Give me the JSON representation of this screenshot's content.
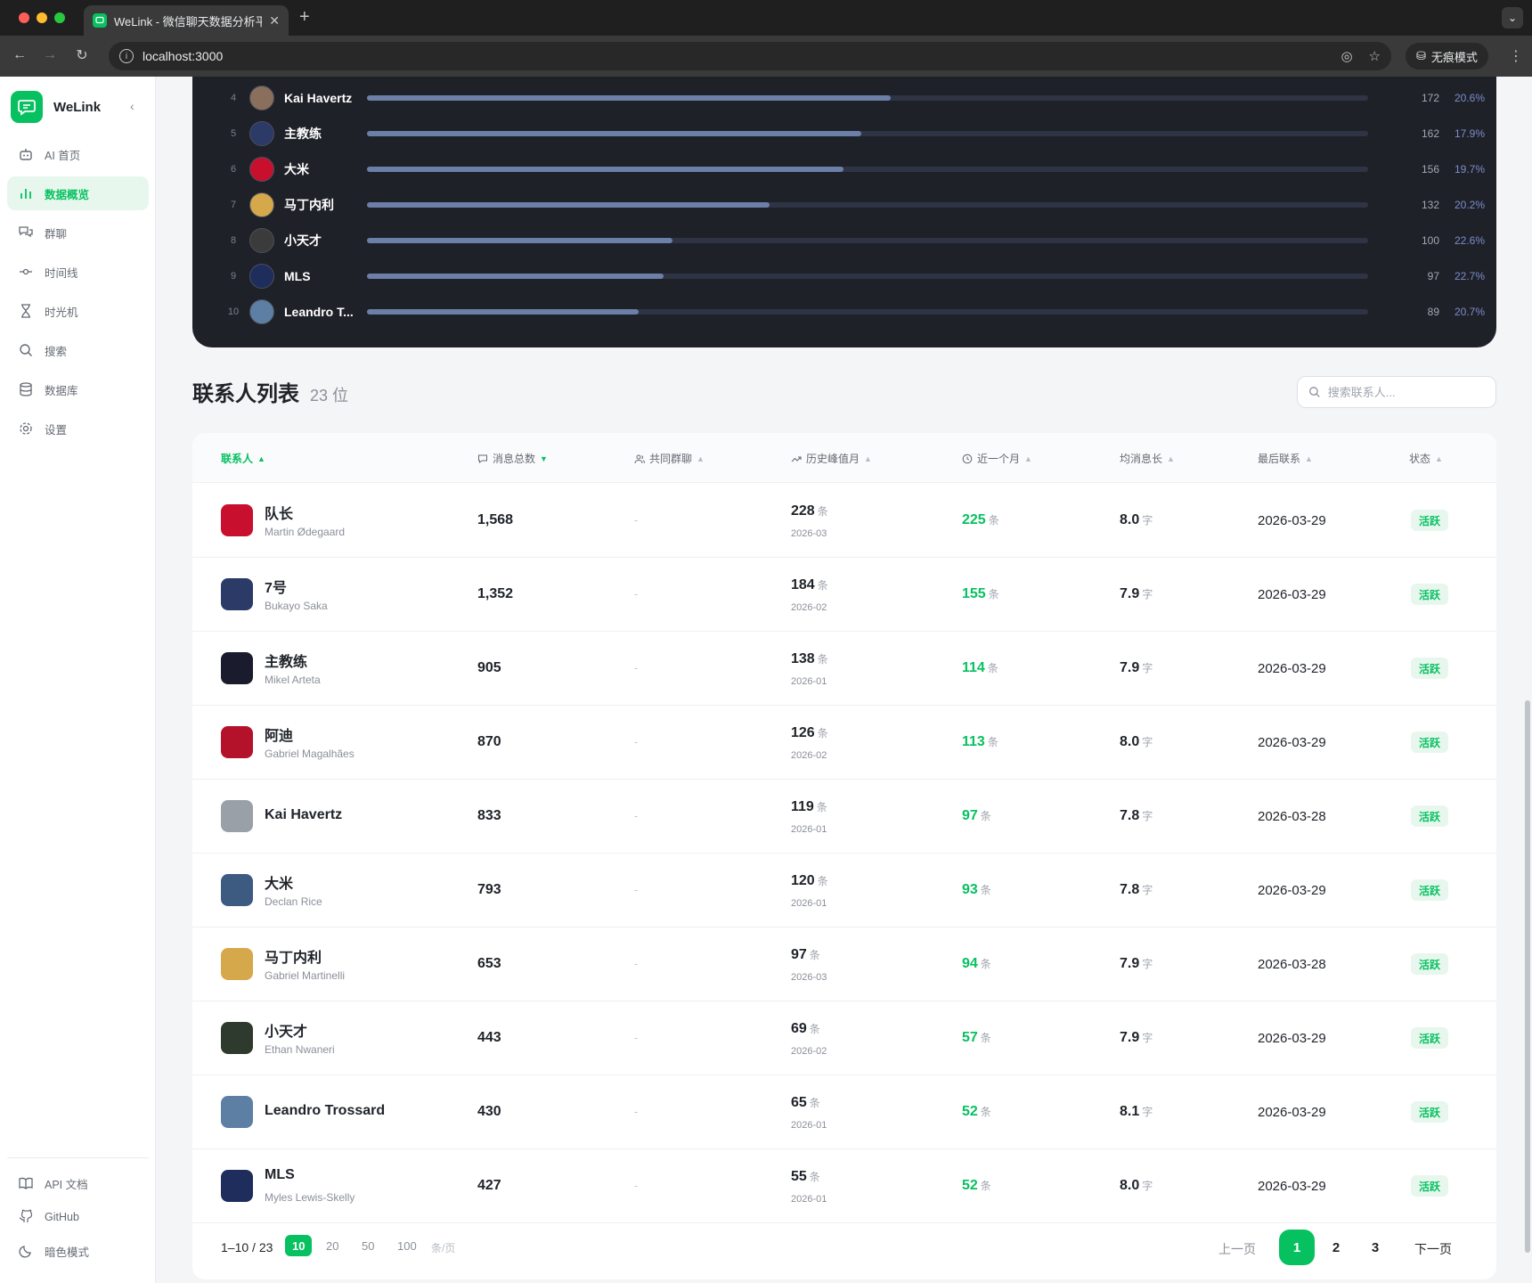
{
  "browser": {
    "tab_title": "WeLink - 微信聊天数据分析平台",
    "url": "localhost:3000",
    "incognito_label": "无痕模式"
  },
  "sidebar": {
    "brand": "WeLink",
    "items": [
      {
        "label": "AI 首页",
        "icon": "robot-icon"
      },
      {
        "label": "数据概览",
        "icon": "bar-chart-icon",
        "active": true
      },
      {
        "label": "群聊",
        "icon": "chat-bubbles-icon"
      },
      {
        "label": "时间线",
        "icon": "timeline-icon"
      },
      {
        "label": "时光机",
        "icon": "hourglass-icon"
      },
      {
        "label": "搜索",
        "icon": "search-icon"
      },
      {
        "label": "数据库",
        "icon": "database-icon"
      },
      {
        "label": "设置",
        "icon": "gear-icon"
      }
    ],
    "bottom": [
      {
        "label": "API 文档",
        "icon": "book-icon"
      },
      {
        "label": "GitHub",
        "icon": "github-icon"
      },
      {
        "label": "暗色模式",
        "icon": "moon-icon"
      }
    ]
  },
  "ranking": {
    "rows": [
      {
        "rank": "4",
        "name": "Kai Havertz",
        "count": "172",
        "pct": "20.6%",
        "bar": 0.523
      },
      {
        "rank": "5",
        "name": "主教练",
        "count": "162",
        "pct": "17.9%",
        "bar": 0.494
      },
      {
        "rank": "6",
        "name": "大米",
        "count": "156",
        "pct": "19.7%",
        "bar": 0.476
      },
      {
        "rank": "7",
        "name": "马丁内利",
        "count": "132",
        "pct": "20.2%",
        "bar": 0.402
      },
      {
        "rank": "8",
        "name": "小天才",
        "count": "100",
        "pct": "22.6%",
        "bar": 0.305
      },
      {
        "rank": "9",
        "name": "MLS",
        "count": "97",
        "pct": "22.7%",
        "bar": 0.296
      },
      {
        "rank": "10",
        "name": "Leandro T...",
        "count": "89",
        "pct": "20.7%",
        "bar": 0.271
      }
    ]
  },
  "contacts": {
    "title": "联系人列表",
    "count": "23 位",
    "search_placeholder": "搜索联系人...",
    "columns": [
      "联系人",
      "消息总数",
      "共同群聊",
      "历史峰值月",
      "近一个月",
      "均消息长",
      "最后联系",
      "状态"
    ],
    "unit_msgs": "条",
    "unit_chars": "字",
    "rows": [
      {
        "name": "队长",
        "sub": "Martin Ødegaard",
        "total": "1,568",
        "groups": "-",
        "peak": "228",
        "peak_month": "2026-03",
        "recent": "225",
        "avg": "8.0",
        "last": "2026-03-29",
        "status": "活跃",
        "color": "#c8102e"
      },
      {
        "name": "7号",
        "sub": "Bukayo Saka",
        "total": "1,352",
        "groups": "-",
        "peak": "184",
        "peak_month": "2026-02",
        "recent": "155",
        "avg": "7.9",
        "last": "2026-03-29",
        "status": "活跃",
        "color": "#2b3a67"
      },
      {
        "name": "主教练",
        "sub": "Mikel Arteta",
        "total": "905",
        "groups": "-",
        "peak": "138",
        "peak_month": "2026-01",
        "recent": "114",
        "avg": "7.9",
        "last": "2026-03-29",
        "status": "活跃",
        "color": "#1a1c2e"
      },
      {
        "name": "阿迪",
        "sub": "Gabriel Magalhães",
        "total": "870",
        "groups": "-",
        "peak": "126",
        "peak_month": "2026-02",
        "recent": "113",
        "avg": "8.0",
        "last": "2026-03-29",
        "status": "活跃",
        "color": "#b3122a"
      },
      {
        "name": "Kai Havertz",
        "sub": "",
        "total": "833",
        "groups": "-",
        "peak": "119",
        "peak_month": "2026-01",
        "recent": "97",
        "avg": "7.8",
        "last": "2026-03-28",
        "status": "活跃",
        "color": "#9aa0a8"
      },
      {
        "name": "大米",
        "sub": "Declan Rice",
        "total": "793",
        "groups": "-",
        "peak": "120",
        "peak_month": "2026-01",
        "recent": "93",
        "avg": "7.8",
        "last": "2026-03-29",
        "status": "活跃",
        "color": "#3d5a80"
      },
      {
        "name": "马丁内利",
        "sub": "Gabriel Martinelli",
        "total": "653",
        "groups": "-",
        "peak": "97",
        "peak_month": "2026-03",
        "recent": "94",
        "avg": "7.9",
        "last": "2026-03-28",
        "status": "活跃",
        "color": "#d4a84b"
      },
      {
        "name": "小天才",
        "sub": "Ethan Nwaneri",
        "total": "443",
        "groups": "-",
        "peak": "69",
        "peak_month": "2026-02",
        "recent": "57",
        "avg": "7.9",
        "last": "2026-03-29",
        "status": "活跃",
        "color": "#2f3a2f"
      },
      {
        "name": "Leandro Trossard",
        "sub": "",
        "total": "430",
        "groups": "-",
        "peak": "65",
        "peak_month": "2026-01",
        "recent": "52",
        "avg": "8.1",
        "last": "2026-03-29",
        "status": "活跃",
        "color": "#5d7fa3"
      },
      {
        "name": "MLS",
        "sub": "Myles Lewis-Skelly",
        "total": "427",
        "groups": "-",
        "peak": "55",
        "peak_month": "2026-01",
        "recent": "52",
        "avg": "8.0",
        "last": "2026-03-29",
        "status": "活跃",
        "color": "#1f2d5c"
      }
    ]
  },
  "pagination": {
    "range": "1–10 / 23",
    "sizes": [
      "10",
      "20",
      "50",
      "100"
    ],
    "per_page": "条/页",
    "prev": "上一页",
    "pages": [
      "1",
      "2",
      "3"
    ],
    "next": "下一页"
  },
  "colors": {
    "accent": "#07c160",
    "dark_card": "#1f2129",
    "bar": "#6b7fa8"
  }
}
